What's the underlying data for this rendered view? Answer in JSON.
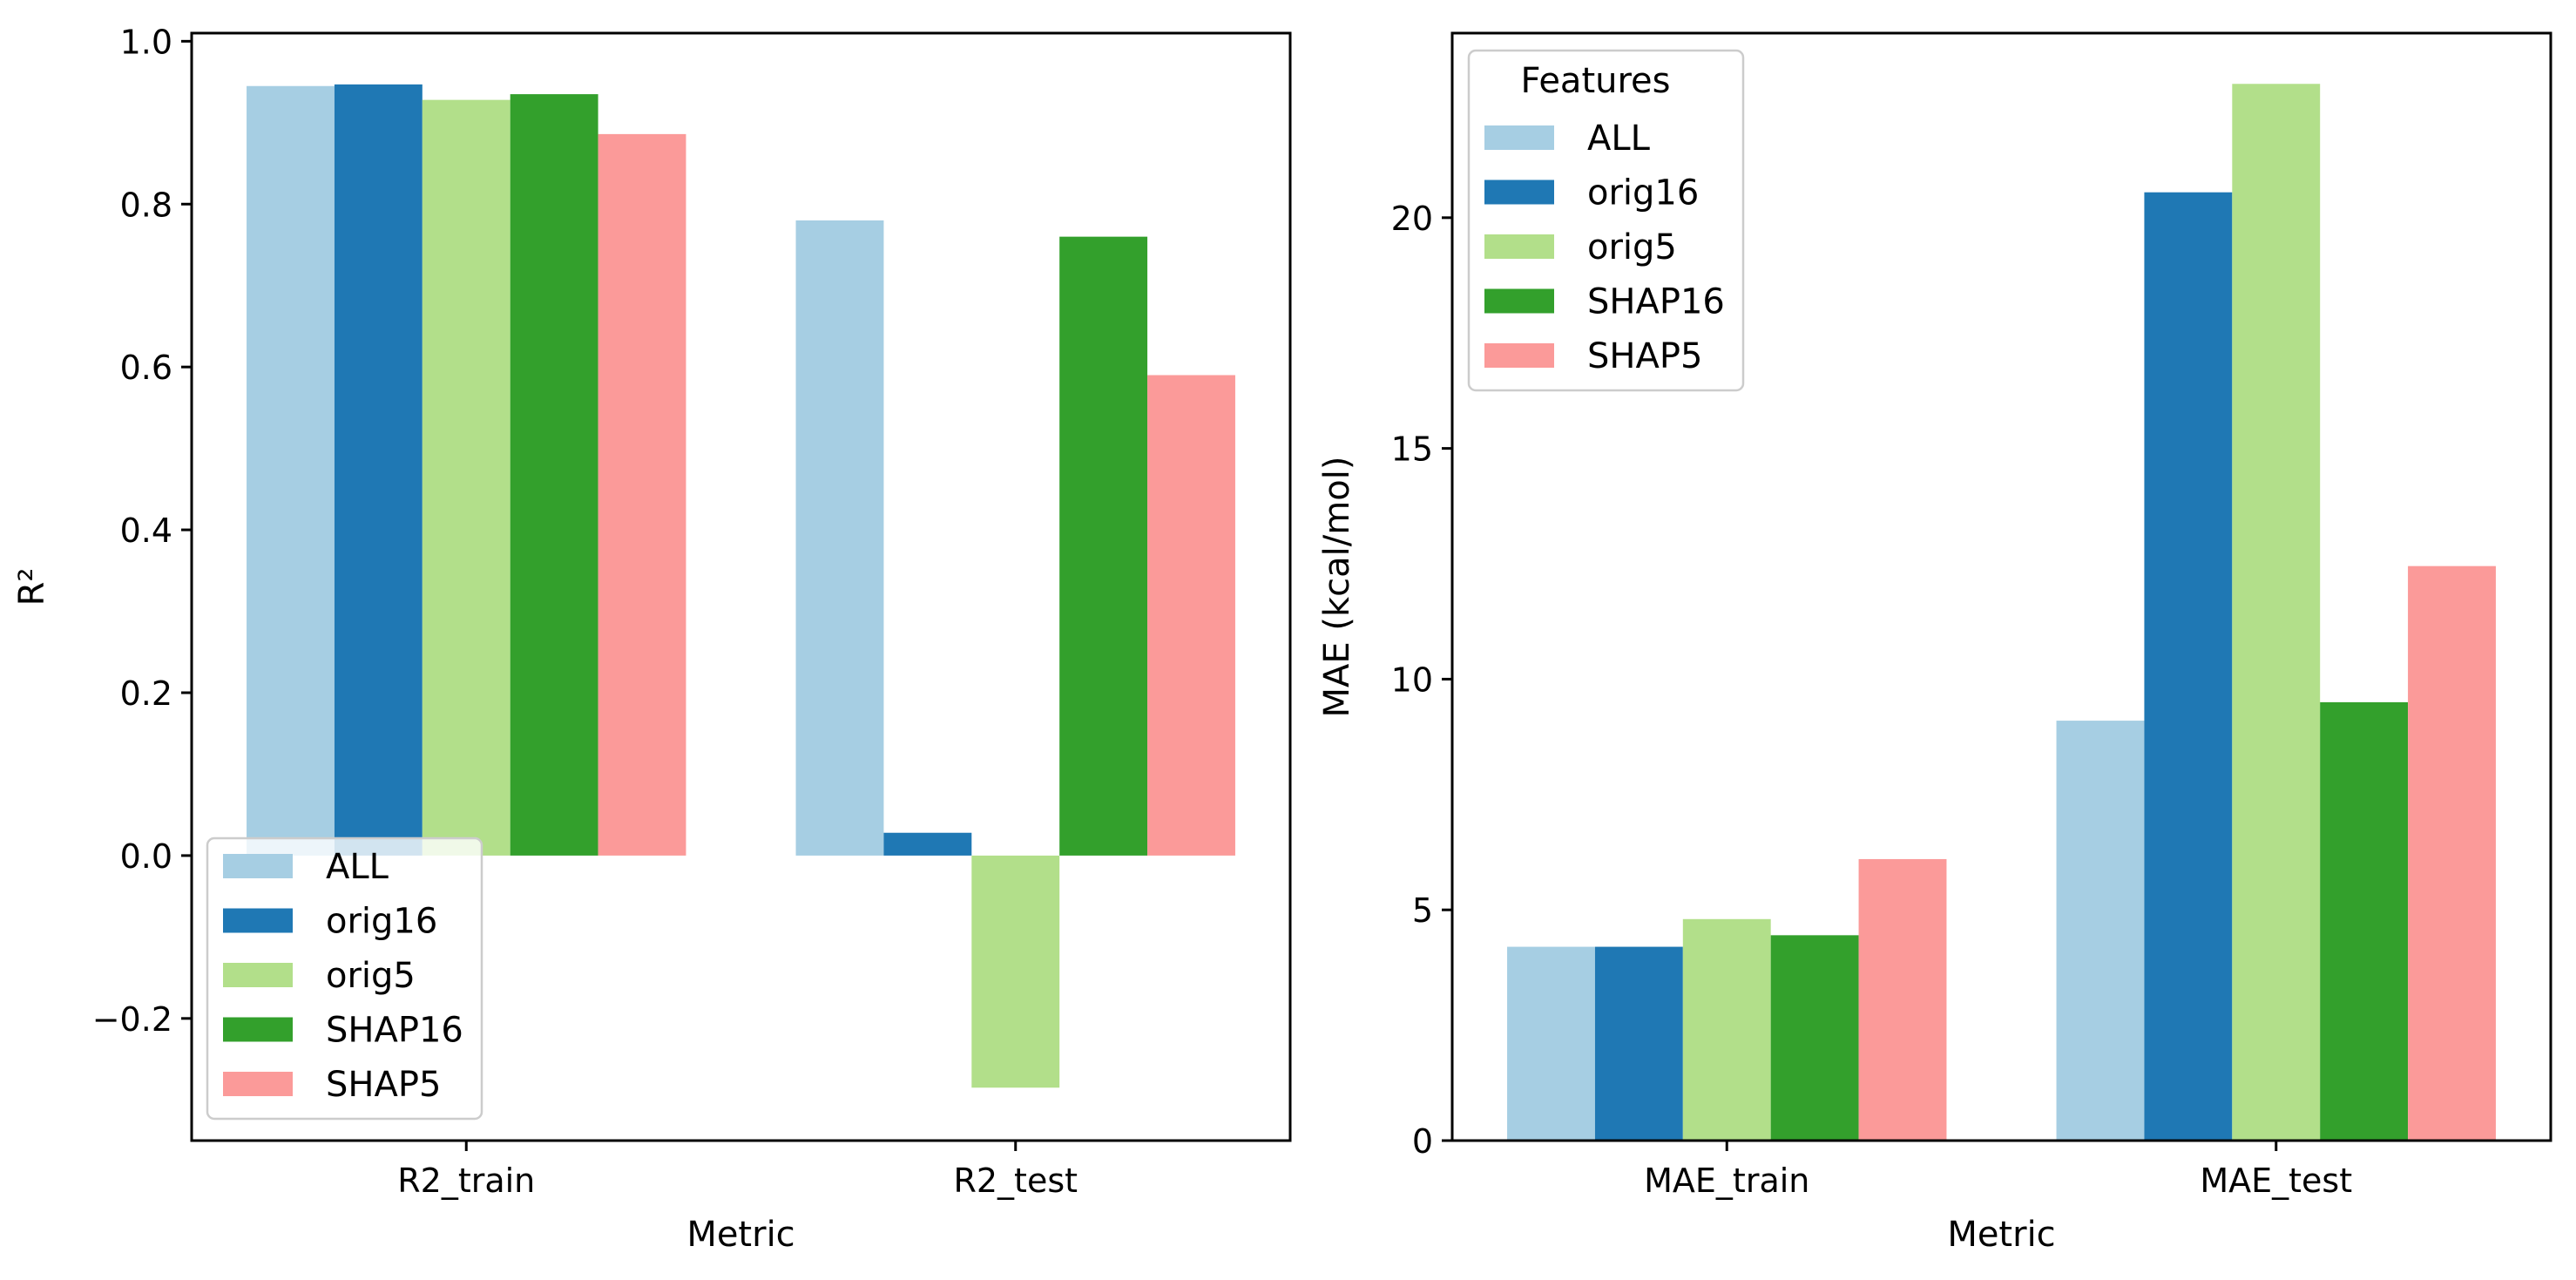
{
  "colors": {
    "ALL": "#a6cee3",
    "orig16": "#1f78b4",
    "orig5": "#b2df8a",
    "SHAP16": "#33a02c",
    "SHAP5": "#fb9a99"
  },
  "chart_data": [
    {
      "type": "bar",
      "categories": [
        "R2_train",
        "R2_test"
      ],
      "series": [
        {
          "name": "ALL",
          "values": [
            0.945,
            0.78
          ]
        },
        {
          "name": "orig16",
          "values": [
            0.947,
            0.028
          ]
        },
        {
          "name": "orig5",
          "values": [
            0.928,
            -0.285
          ]
        },
        {
          "name": "SHAP16",
          "values": [
            0.935,
            0.76
          ]
        },
        {
          "name": "SHAP5",
          "values": [
            0.886,
            0.59
          ]
        }
      ],
      "xlabel": "Metric",
      "ylabel": "R²",
      "ylim": [
        -0.35,
        1.01
      ],
      "yticks": [
        -0.2,
        0.0,
        0.2,
        0.4,
        0.6,
        0.8,
        1.0
      ],
      "ytick_labels": [
        "−0.2",
        "0.0",
        "0.2",
        "0.4",
        "0.6",
        "0.8",
        "1.0"
      ],
      "legend": {
        "title": "",
        "placement": "lower-left",
        "labels": [
          "ALL",
          "orig16",
          "orig5",
          "SHAP16",
          "SHAP5"
        ]
      },
      "grid": false
    },
    {
      "type": "bar",
      "categories": [
        "MAE_train",
        "MAE_test"
      ],
      "series": [
        {
          "name": "ALL",
          "values": [
            4.2,
            9.1
          ]
        },
        {
          "name": "orig16",
          "values": [
            4.2,
            20.55
          ]
        },
        {
          "name": "orig5",
          "values": [
            4.8,
            22.9
          ]
        },
        {
          "name": "SHAP16",
          "values": [
            4.45,
            9.5
          ]
        },
        {
          "name": "SHAP5",
          "values": [
            6.1,
            12.45
          ]
        }
      ],
      "xlabel": "Metric",
      "ylabel": "MAE (kcal/mol)",
      "ylim": [
        0,
        24.0
      ],
      "yticks": [
        0,
        5,
        10,
        15,
        20
      ],
      "ytick_labels": [
        "0",
        "5",
        "10",
        "15",
        "20"
      ],
      "legend": {
        "title": "Features",
        "placement": "top-left",
        "labels": [
          "ALL",
          "orig16",
          "orig5",
          "SHAP16",
          "SHAP5"
        ]
      },
      "grid": false
    }
  ]
}
